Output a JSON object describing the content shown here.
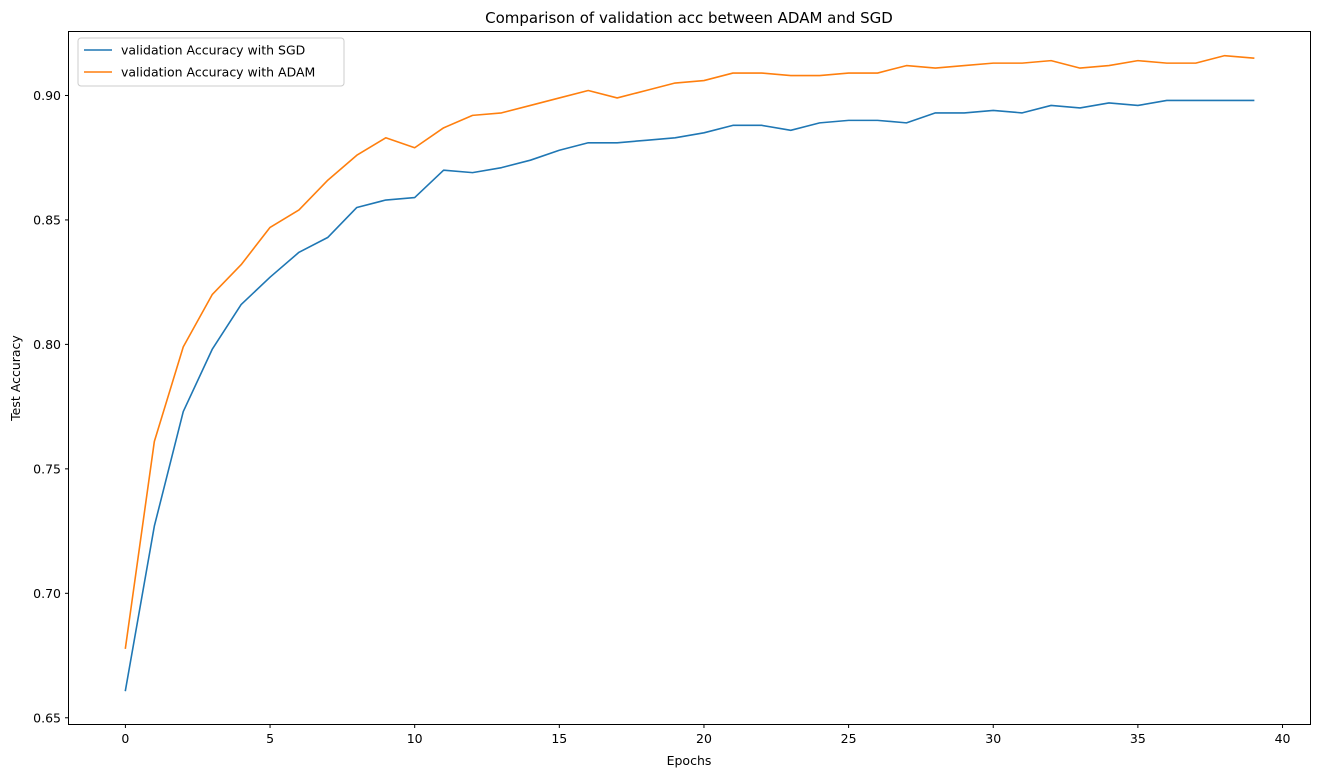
{
  "chart_data": {
    "type": "line",
    "title": "Comparison of validation acc between ADAM and SGD",
    "xlabel": "Epochs",
    "ylabel": "Test Accuracy",
    "xlim": [
      -1.95,
      40.95
    ],
    "ylim": [
      0.6475,
      0.9255
    ],
    "xticks": [
      0,
      5,
      10,
      15,
      20,
      25,
      30,
      35,
      40
    ],
    "xtick_labels": [
      "0",
      "5",
      "10",
      "15",
      "20",
      "25",
      "30",
      "35",
      "40"
    ],
    "yticks": [
      0.65,
      0.7,
      0.75,
      0.8,
      0.85,
      0.9
    ],
    "ytick_labels": [
      "0.65",
      "0.70",
      "0.75",
      "0.80",
      "0.85",
      "0.90"
    ],
    "grid": false,
    "legend_position": "top-left",
    "x": [
      0,
      1,
      2,
      3,
      4,
      5,
      6,
      7,
      8,
      9,
      10,
      11,
      12,
      13,
      14,
      15,
      16,
      17,
      18,
      19,
      20,
      21,
      22,
      23,
      24,
      25,
      26,
      27,
      28,
      29,
      30,
      31,
      32,
      33,
      34,
      35,
      36,
      37,
      38,
      39
    ],
    "series": [
      {
        "name": "validation Accuracy with SGD",
        "color": "#1f77b4",
        "values": [
          0.661,
          0.727,
          0.773,
          0.798,
          0.816,
          0.827,
          0.837,
          0.843,
          0.855,
          0.858,
          0.859,
          0.87,
          0.869,
          0.871,
          0.874,
          0.878,
          0.881,
          0.881,
          0.882,
          0.883,
          0.885,
          0.888,
          0.888,
          0.886,
          0.889,
          0.89,
          0.89,
          0.889,
          0.893,
          0.893,
          0.894,
          0.893,
          0.896,
          0.895,
          0.897,
          0.896,
          0.898,
          0.898,
          0.898,
          0.898
        ]
      },
      {
        "name": "validation Accuracy with ADAM",
        "color": "#ff7f0e",
        "values": [
          0.678,
          0.761,
          0.799,
          0.82,
          0.832,
          0.847,
          0.854,
          0.866,
          0.876,
          0.883,
          0.879,
          0.887,
          0.892,
          0.893,
          0.896,
          0.899,
          0.902,
          0.899,
          0.902,
          0.905,
          0.906,
          0.909,
          0.909,
          0.908,
          0.908,
          0.909,
          0.909,
          0.912,
          0.911,
          0.912,
          0.913,
          0.913,
          0.914,
          0.911,
          0.912,
          0.914,
          0.913,
          0.913,
          0.916,
          0.915
        ]
      }
    ]
  }
}
